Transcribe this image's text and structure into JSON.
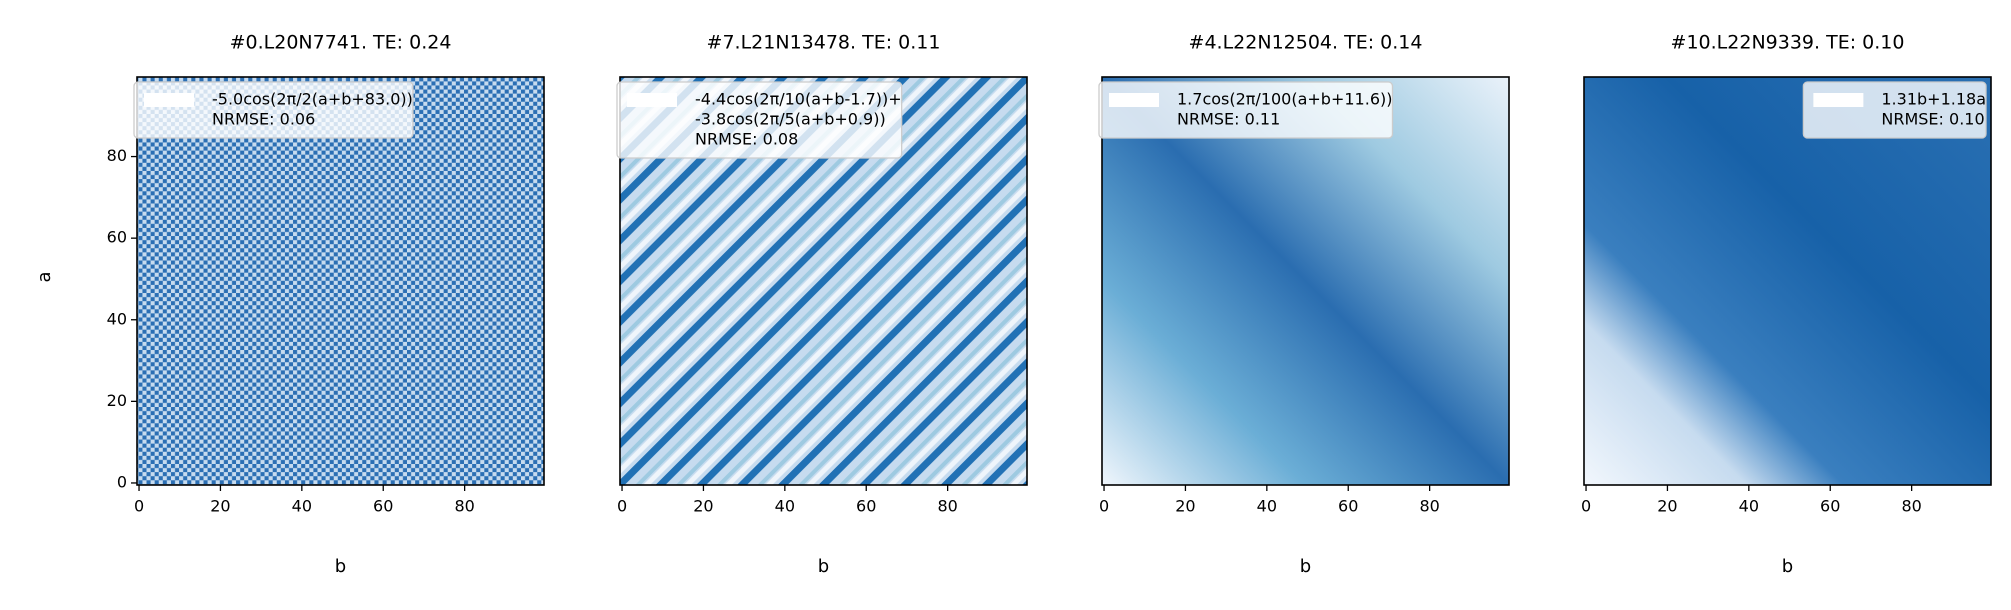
{
  "chart_data": [
    {
      "type": "heatmap",
      "title": "#0.L20N7741. TE: 0.24",
      "xlabel": "b",
      "ylabel": "a",
      "xlim": [
        -0.5,
        99.5
      ],
      "ylim": [
        -0.5,
        99.5
      ],
      "xticks": [
        0,
        20,
        40,
        60,
        80
      ],
      "yticks": [
        0,
        20,
        40,
        60,
        80
      ],
      "legend": {
        "loc": "upper left",
        "lines": [
          "-5.0cos(2π/2(a+b+83.0))",
          "NRMSE: 0.06"
        ]
      }
    },
    {
      "type": "heatmap",
      "title": "#7.L21N13478. TE: 0.11",
      "xlabel": "b",
      "xlim": [
        -0.5,
        99.5
      ],
      "ylim": [
        -0.5,
        99.5
      ],
      "xticks": [
        0,
        20,
        40,
        60,
        80
      ],
      "legend": {
        "loc": "upper left",
        "lines": [
          "-4.4cos(2π/10(a+b-1.7))+",
          "-3.8cos(2π/5(a+b+0.9))",
          "NRMSE: 0.08"
        ]
      }
    },
    {
      "type": "heatmap",
      "title": "#4.L22N12504. TE: 0.14",
      "xlabel": "b",
      "xlim": [
        -0.5,
        99.5
      ],
      "ylim": [
        -0.5,
        99.5
      ],
      "xticks": [
        0,
        20,
        40,
        60,
        80
      ],
      "legend": {
        "loc": "upper left",
        "lines": [
          "1.7cos(2π/100(a+b+11.6))",
          "NRMSE: 0.11"
        ]
      }
    },
    {
      "type": "heatmap",
      "title": "#10.L22N9339. TE: 0.10",
      "xlabel": "b",
      "xlim": [
        -0.5,
        99.5
      ],
      "ylim": [
        -0.5,
        99.5
      ],
      "xticks": [
        0,
        20,
        40,
        60,
        80
      ],
      "legend": {
        "loc": "upper right",
        "lines": [
          "1.31b+1.18a",
          "NRMSE: 0.10"
        ]
      }
    }
  ]
}
